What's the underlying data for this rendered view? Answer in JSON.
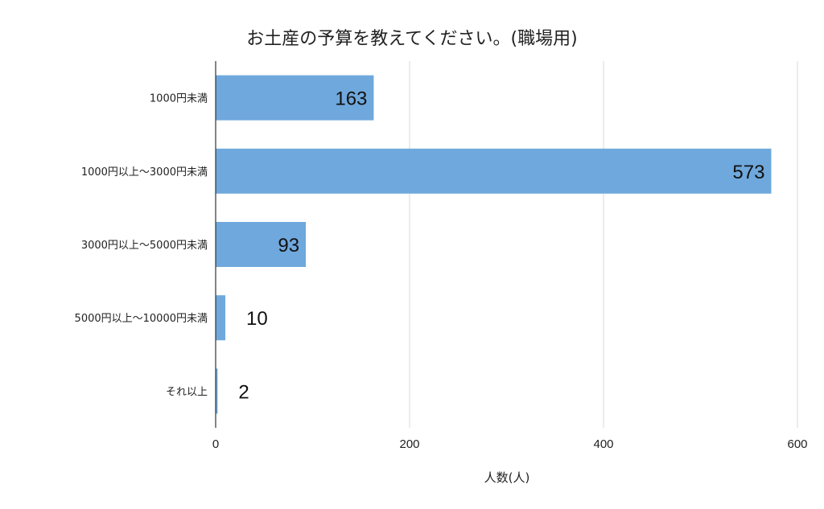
{
  "chart_data": {
    "type": "bar",
    "orientation": "horizontal",
    "title": "お土産の予算を教えてください。(職場用)",
    "xlabel": "人数(人)",
    "ylabel": "",
    "categories": [
      "1000円未満",
      "1000円以上～3000円未満",
      "3000円以上～5000円未満",
      "5000円以上～10000円未満",
      "それ以上"
    ],
    "values": [
      163,
      573,
      93,
      10,
      2
    ],
    "data_labels": [
      "163",
      "573",
      "93",
      "10",
      "2"
    ],
    "xlim": [
      0,
      600
    ],
    "x_ticks": [
      0,
      200,
      400,
      600
    ],
    "x_tick_labels": [
      "0",
      "200",
      "400",
      "600"
    ],
    "grid": "vertical",
    "legend": "none",
    "bar_color": "#6fa8dc"
  }
}
